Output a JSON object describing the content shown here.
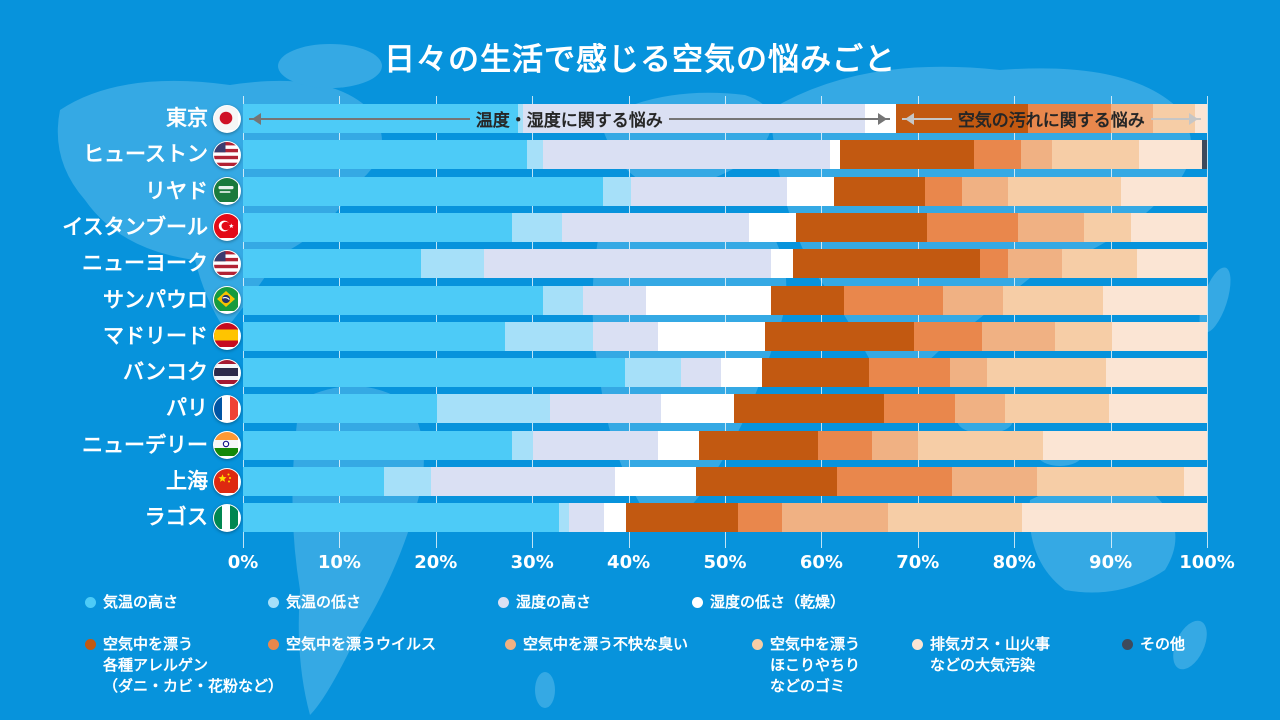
{
  "title": "日々の生活で感じる空気の悩みごと",
  "annotations": {
    "temp_humidity_label": "温度・湿度に関する悩み",
    "air_dirt_label": "空気の汚れに関する悩み",
    "split_percent": 67.7,
    "left_arrow_color": "#757575",
    "right_arrow_color": "#C6C6C6"
  },
  "axis": {
    "ticks": [
      "0%",
      "10%",
      "20%",
      "30%",
      "40%",
      "50%",
      "60%",
      "70%",
      "80%",
      "90%",
      "100%"
    ],
    "min": 0,
    "max": 100
  },
  "chart_data": {
    "type": "bar",
    "stacked": true,
    "orientation": "horizontal",
    "unit": "%",
    "xlim": [
      0,
      100
    ],
    "grid": true,
    "title": "日々の生活で感じる空気の悩みごと",
    "series": [
      {
        "name": "気温の高さ",
        "color": "#4DCBF7",
        "legend_label": "気温の高さ"
      },
      {
        "name": "気温の低さ",
        "color": "#A6E0F9",
        "legend_label": "気温の低さ"
      },
      {
        "name": "湿度の高さ",
        "color": "#DAE0F3",
        "legend_label": "湿度の高さ"
      },
      {
        "name": "湿度の低さ（乾燥）",
        "color": "#FFFFFF",
        "legend_label": "湿度の低さ（乾燥）"
      },
      {
        "name": "空気中を漂う各種アレルゲン（ダニ・カビ・花粉など）",
        "color": "#C25911",
        "legend_label": "空気中を漂う\n各種アレルゲン\n（ダニ・カビ・花粉など）"
      },
      {
        "name": "空気中を漂うウイルス",
        "color": "#E9874C",
        "legend_label": "空気中を漂うウイルス"
      },
      {
        "name": "空気中を漂う不快な臭い",
        "color": "#F0B183",
        "legend_label": "空気中を漂う不快な臭い"
      },
      {
        "name": "空気中を漂うほこりやちりなどのゴミ",
        "color": "#F6CDA6",
        "legend_label": "空気中を漂う\nほこりやちり\nなどのゴミ"
      },
      {
        "name": "排気ガス・山火事などの大気汚染",
        "color": "#FBE5D4",
        "legend_label": "排気ガス・山火事\nなどの大気汚染"
      },
      {
        "name": "その他",
        "color": "#3E4A5C",
        "legend_label": "その他"
      }
    ],
    "rows": [
      {
        "city": "東京",
        "flag": "jp",
        "values": [
          28.5,
          0.5,
          35.5,
          3.2,
          13.7,
          8.6,
          4.4,
          4.4,
          1.2,
          0
        ]
      },
      {
        "city": "ヒューストン",
        "flag": "us",
        "values": [
          29.5,
          1.6,
          29.8,
          1.0,
          13.9,
          4.9,
          3.2,
          9.1,
          6.5,
          0.5
        ]
      },
      {
        "city": "リヤド",
        "flag": "sa",
        "values": [
          37.3,
          2.9,
          16.2,
          4.9,
          9.4,
          3.9,
          4.8,
          11.7,
          8.9,
          0
        ]
      },
      {
        "city": "イスタンブール",
        "flag": "tr",
        "values": [
          27.9,
          5.2,
          19.4,
          4.9,
          13.6,
          9.4,
          6.8,
          4.9,
          7.9,
          0
        ]
      },
      {
        "city": "ニューヨーク",
        "flag": "us",
        "values": [
          18.5,
          6.5,
          29.8,
          2.3,
          19.4,
          2.9,
          5.6,
          7.7,
          7.3,
          0
        ]
      },
      {
        "city": "サンパウロ",
        "flag": "br",
        "values": [
          31.1,
          4.2,
          6.5,
          13.0,
          7.5,
          10.3,
          6.2,
          10.4,
          10.8,
          0
        ]
      },
      {
        "city": "マドリード",
        "flag": "es",
        "values": [
          27.2,
          9.1,
          6.8,
          11.0,
          15.5,
          7.1,
          7.5,
          5.9,
          9.9,
          0
        ]
      },
      {
        "city": "バンコク",
        "flag": "th",
        "values": [
          39.6,
          5.8,
          4.2,
          4.2,
          11.1,
          8.4,
          3.9,
          12.3,
          10.5,
          0
        ]
      },
      {
        "city": "パリ",
        "flag": "fr",
        "values": [
          20.1,
          11.7,
          11.6,
          7.5,
          15.6,
          7.4,
          5.2,
          10.7,
          10.2,
          0
        ]
      },
      {
        "city": "ニューデリー",
        "flag": "in",
        "values": [
          27.9,
          2.2,
          13.0,
          4.2,
          12.4,
          5.5,
          4.8,
          13.0,
          17.0,
          0
        ]
      },
      {
        "city": "上海",
        "flag": "cn",
        "values": [
          14.6,
          4.9,
          19.1,
          8.4,
          14.6,
          12.0,
          8.8,
          15.2,
          2.4,
          0
        ]
      },
      {
        "city": "ラゴス",
        "flag": "ng",
        "values": [
          32.8,
          1.0,
          3.6,
          2.3,
          11.7,
          4.5,
          11.0,
          13.9,
          19.2,
          0
        ]
      }
    ]
  },
  "legend": {
    "row1_series": [
      0,
      1,
      2,
      3
    ],
    "row2_series": [
      4,
      5,
      6,
      7,
      8,
      9
    ]
  },
  "colors": {
    "background": "#0793DC",
    "map": "#35A9E4",
    "gridline": "#FFFFFF",
    "text": "#FFFFFF"
  }
}
